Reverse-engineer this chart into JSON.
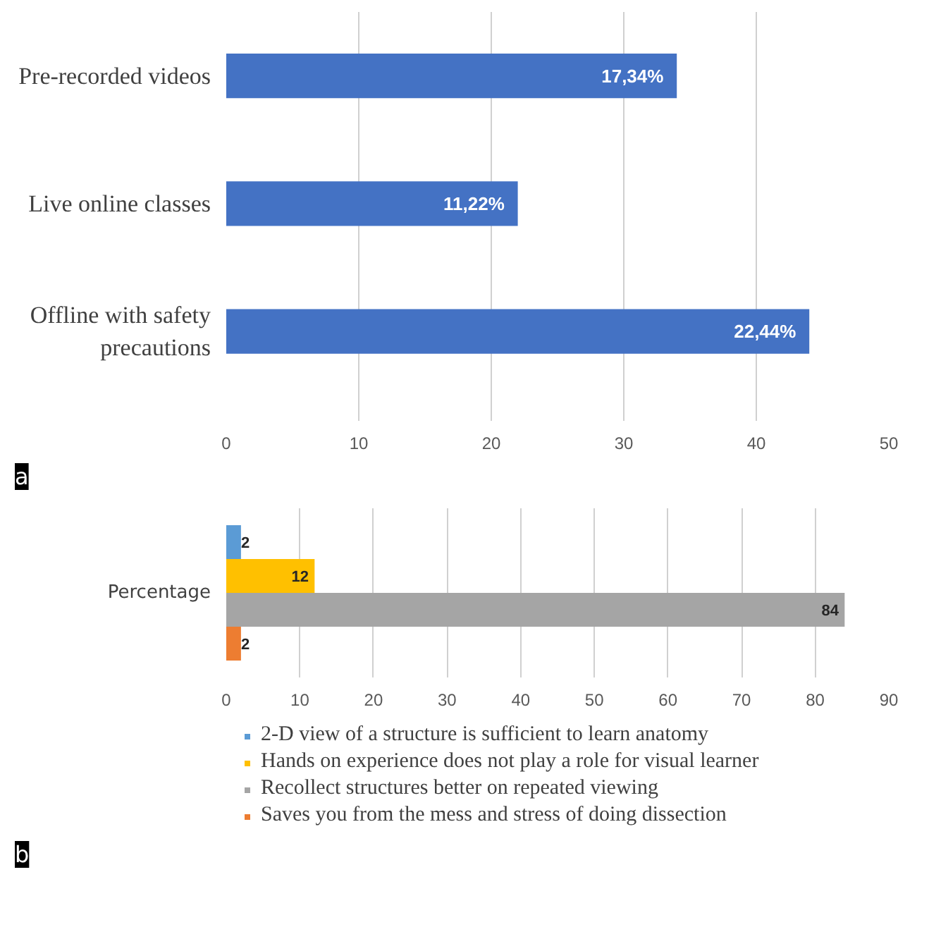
{
  "chart_data": [
    {
      "type": "bar",
      "orientation": "horizontal",
      "categories": [
        "Pre-recorded videos",
        "Live online classes",
        "Offline with safety precautions"
      ],
      "values": [
        34,
        22,
        44
      ],
      "color": "#4472c4",
      "xlim": [
        0,
        50
      ],
      "xticks": [
        0,
        10,
        20,
        30,
        40,
        50
      ],
      "grid": "x",
      "annotations": [
        {
          "text": "17,34%",
          "x": 34,
          "y": "Pre-recorded videos"
        },
        {
          "text": "11,22%",
          "x": 22,
          "y": "Live online classes"
        },
        {
          "text": "22,44%",
          "x": 44,
          "y": "Offline with safety precautions"
        },
        "a"
      ]
    },
    {
      "type": "bar",
      "orientation": "horizontal",
      "categories": [
        "Percentage"
      ],
      "series": [
        {
          "name": "2-D view of a structure is sufficient to learn anatomy",
          "color": "#5b9bd5",
          "values": [
            2
          ]
        },
        {
          "name": "Hands on experience does not play a role for visual learner",
          "color": "#ffc000",
          "values": [
            12
          ]
        },
        {
          "name": "Recollect structures better on repeated viewing",
          "color": "#a5a5a5",
          "values": [
            84
          ]
        },
        {
          "name": "Saves you from the mess and stress of doing dissection",
          "color": "#ed7d31",
          "values": [
            2
          ]
        }
      ],
      "data_labels": true,
      "xlim": [
        0,
        90
      ],
      "xticks": [
        0,
        10,
        20,
        30,
        40,
        50,
        60,
        70,
        80,
        90
      ],
      "grid": "x",
      "legend": "bottom",
      "annotations": [
        "b"
      ]
    }
  ]
}
